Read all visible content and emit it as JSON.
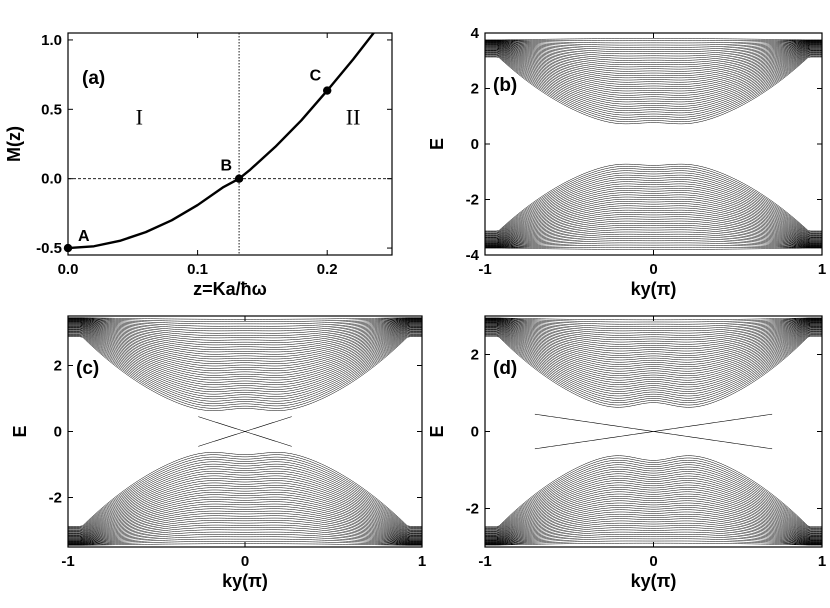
{
  "chart_data": [
    {
      "panel": "a",
      "type": "line",
      "panel_label": "(a)",
      "xlabel": "z=Ka/ħω",
      "ylabel": "M(z)",
      "xlim": [
        0,
        0.25
      ],
      "ylim": [
        -0.55,
        1.05
      ],
      "x_ticks": [
        0.0,
        0.1,
        0.2
      ],
      "x_tick_labels": [
        "0.0",
        "0.1",
        "0.2"
      ],
      "y_ticks": [
        -0.5,
        0.0,
        0.5,
        1.0
      ],
      "y_tick_labels": [
        "-0.5",
        "0.0",
        "0.5",
        "1.0"
      ],
      "series": [
        {
          "x": [
            0.0,
            0.02,
            0.04,
            0.06,
            0.08,
            0.1,
            0.12,
            0.132,
            0.14,
            0.16,
            0.18,
            0.2,
            0.22,
            0.24,
            0.25
          ],
          "y": [
            -0.5,
            -0.487,
            -0.448,
            -0.385,
            -0.3,
            -0.19,
            -0.06,
            0.0,
            0.06,
            0.23,
            0.42,
            0.635,
            0.86,
            1.1,
            1.22
          ]
        }
      ],
      "reference_lines": {
        "y": 0.0,
        "x": 0.132
      },
      "points": [
        {
          "label": "A",
          "x": 0.0,
          "y": -0.5
        },
        {
          "label": "B",
          "x": 0.132,
          "y": 0.0
        },
        {
          "label": "C",
          "x": 0.2,
          "y": 0.635
        }
      ],
      "region_labels": [
        {
          "text": "I",
          "x": 0.055,
          "y": 0.45
        },
        {
          "text": "II",
          "x": 0.22,
          "y": 0.45
        }
      ]
    },
    {
      "panel": "b",
      "type": "line",
      "panel_label": "(b)",
      "xlabel": "ky(π)",
      "ylabel": "E",
      "xlim": [
        -1,
        1
      ],
      "ylim": [
        -4,
        4
      ],
      "x_ticks": [
        -1,
        0,
        1
      ],
      "x_tick_labels": [
        "-1",
        "0",
        "1"
      ],
      "y_ticks": [
        -4,
        -2,
        0,
        2,
        4
      ],
      "y_tick_labels": [
        "-4",
        "-2",
        "0",
        "2",
        "4"
      ],
      "bands": {
        "gap": 0.55,
        "top": 4.0,
        "inner_bottom": 3.8,
        "edge_top": 3.75,
        "hump": 0.22,
        "n_lines": 40,
        "edge_states": false
      }
    },
    {
      "panel": "c",
      "type": "line",
      "panel_label": "(c)",
      "xlabel": "ky(π)",
      "ylabel": "E",
      "xlim": [
        -1,
        1
      ],
      "ylim": [
        -3.5,
        3.5
      ],
      "x_ticks": [
        -1,
        0,
        1
      ],
      "x_tick_labels": [
        "-1",
        "0",
        "1"
      ],
      "y_ticks": [
        -2,
        0,
        2
      ],
      "y_tick_labels": [
        "-2",
        "0",
        "2"
      ],
      "bands": {
        "gap": 0.45,
        "top": 3.5,
        "inner_bottom": 3.4,
        "edge_top": 3.45,
        "hump": 0.25,
        "n_lines": 40,
        "edge_states": true,
        "edge_width": 0.12
      }
    },
    {
      "panel": "d",
      "type": "line",
      "panel_label": "(d)",
      "xlabel": "ky(π)",
      "ylabel": "E",
      "xlim": [
        -1,
        1
      ],
      "ylim": [
        -3.0,
        3.0
      ],
      "x_ticks": [
        -1,
        0,
        1
      ],
      "x_tick_labels": [
        "-1",
        "0",
        "1"
      ],
      "y_ticks": [
        -2,
        0,
        2
      ],
      "y_tick_labels": [
        "-2",
        "0",
        "2"
      ],
      "bands": {
        "gap": 0.45,
        "top": 3.0,
        "inner_bottom": 2.9,
        "edge_top": 2.95,
        "hump": 0.3,
        "n_lines": 40,
        "edge_states": true,
        "edge_width": 0.32
      }
    }
  ]
}
